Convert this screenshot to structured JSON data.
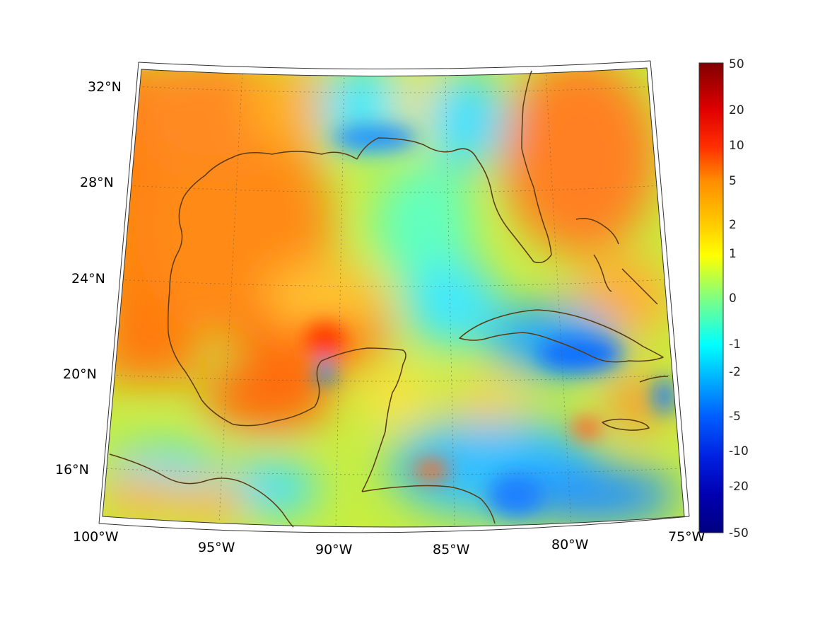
{
  "map": {
    "lat_labels": [
      "32°N",
      "28°N",
      "24°N",
      "20°N",
      "16°N"
    ],
    "lon_labels": [
      "100°W",
      "95°W",
      "90°W",
      "85°W",
      "80°W",
      "75°W"
    ],
    "colorbar": {
      "ticks": [
        "50",
        "20",
        "10",
        "5",
        "2",
        "1",
        "0",
        "-1",
        "-2",
        "-5",
        "-10",
        "-20",
        "-50"
      ],
      "colors": [
        "#800000",
        "#e00000",
        "#ff4000",
        "#ff8c00",
        "#ffd700",
        "#ffff00",
        "#80ff80",
        "#00ffff",
        "#00bfff",
        "#0060ff",
        "#0020e0",
        "#0000a0",
        "#000080"
      ]
    },
    "coastline_color": "#5a3a10"
  }
}
